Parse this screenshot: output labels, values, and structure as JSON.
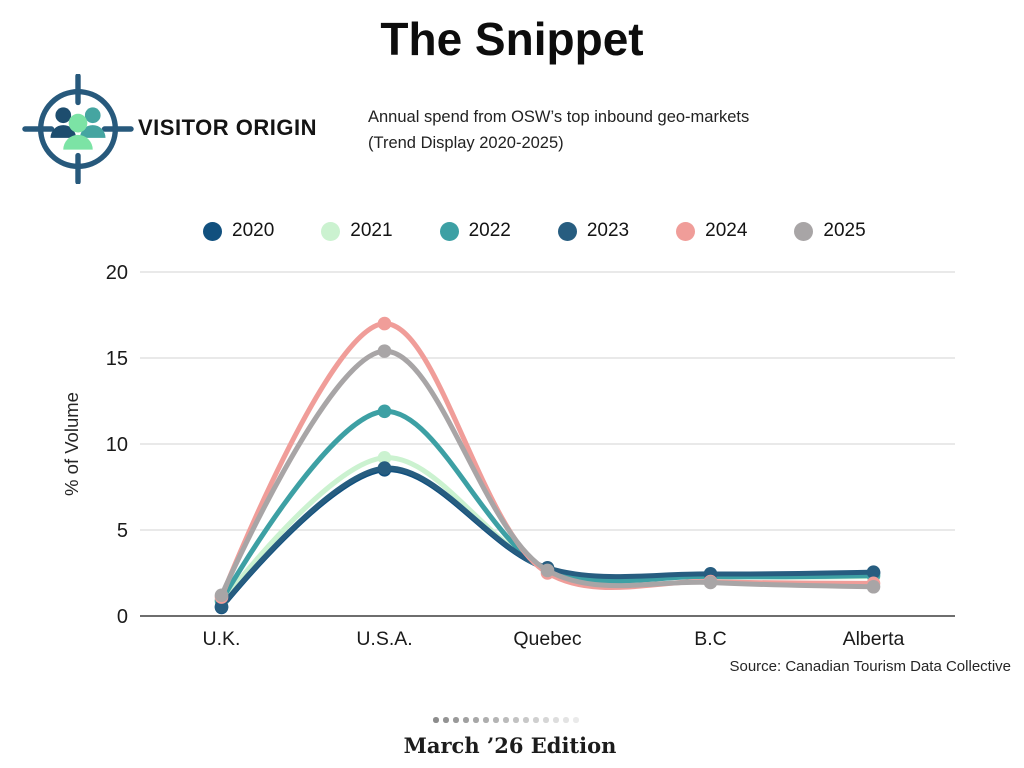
{
  "page": {
    "title": "The Snippet"
  },
  "header": {
    "icon": "visitor-origin-target-people-icon",
    "label": "VISITOR ORIGIN",
    "subtitle_line1": "Annual spend from OSW’s top inbound geo-markets",
    "subtitle_line2": "(Trend Display 2020-2025)"
  },
  "chart_data": {
    "type": "line",
    "categories": [
      "U.K.",
      "U.S.A.",
      "Quebec",
      "B.C",
      "Alberta"
    ],
    "series": [
      {
        "name": "2020",
        "color": "#11507e",
        "values": [
          0.5,
          8.5,
          2.75,
          2.4,
          2.5
        ]
      },
      {
        "name": "2021",
        "color": "#cbf2d0",
        "values": [
          0.8,
          9.2,
          2.75,
          2.3,
          2.3
        ]
      },
      {
        "name": "2022",
        "color": "#3da0a4",
        "values": [
          0.9,
          11.9,
          2.7,
          2.3,
          2.35
        ]
      },
      {
        "name": "2023",
        "color": "#275d80",
        "values": [
          0.55,
          8.6,
          2.8,
          2.45,
          2.55
        ]
      },
      {
        "name": "2024",
        "color": "#f09d99",
        "values": [
          1.1,
          17.0,
          2.5,
          2.0,
          1.9
        ]
      },
      {
        "name": "2025",
        "color": "#a8a5a6",
        "values": [
          1.2,
          15.4,
          2.65,
          1.95,
          1.7
        ]
      }
    ],
    "title": "",
    "xlabel": "",
    "ylabel": "% of Volume",
    "yticks": [
      0,
      5,
      10,
      15,
      20
    ],
    "ylim": [
      0,
      20
    ],
    "grid": true,
    "legend_position": "top"
  },
  "source_note": "Source: Canadian Tourism Data Collective",
  "footer": {
    "edition": "March ’26 Edition",
    "dots_count": 15
  },
  "icon_colors": {
    "ring": "#27597c",
    "person_left": "#1d4d6e",
    "person_right": "#45a5a1",
    "person_center": "#7ce3a5"
  }
}
